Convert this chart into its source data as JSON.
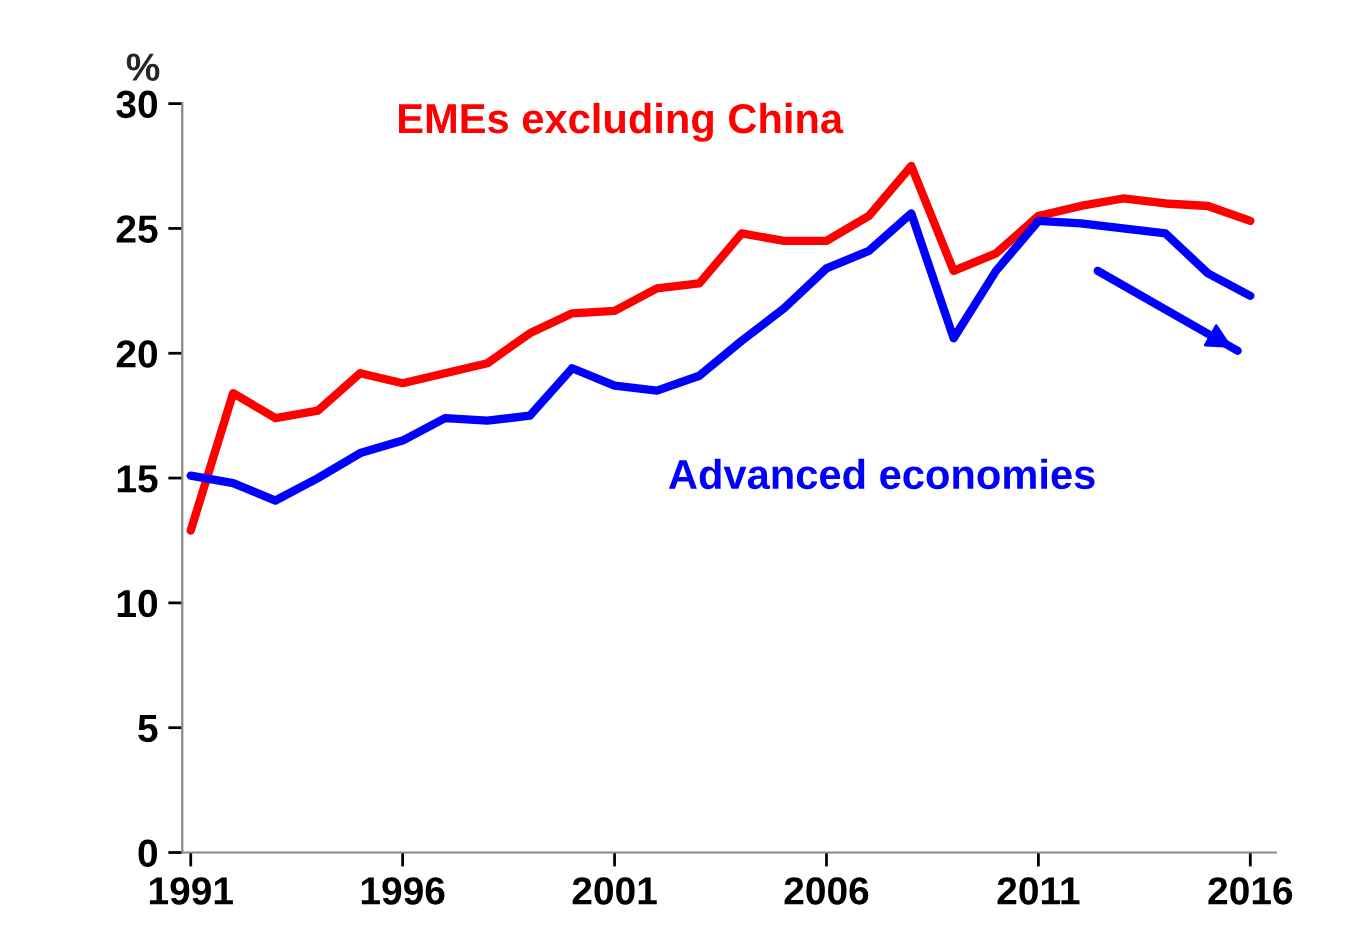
{
  "chart_data": {
    "type": "line",
    "ylabel": "%",
    "x": [
      1991,
      1992,
      1993,
      1994,
      1995,
      1996,
      1997,
      1998,
      1999,
      2000,
      2001,
      2002,
      2003,
      2004,
      2005,
      2006,
      2007,
      2008,
      2009,
      2010,
      2011,
      2012,
      2013,
      2014,
      2015,
      2016
    ],
    "series": [
      {
        "name": "EMEs excluding China",
        "color": "#ff0000",
        "values": [
          12.9,
          18.4,
          17.4,
          17.7,
          19.2,
          18.8,
          19.2,
          19.6,
          20.8,
          21.6,
          21.7,
          22.6,
          22.8,
          24.8,
          24.5,
          24.5,
          25.5,
          27.5,
          23.3,
          24.0,
          25.5,
          25.9,
          26.2,
          26.0,
          25.9,
          25.3
        ]
      },
      {
        "name": "Advanced economies",
        "color": "#0000ff",
        "values": [
          15.1,
          14.8,
          14.1,
          15.0,
          16.0,
          16.5,
          17.4,
          17.3,
          17.5,
          19.4,
          18.7,
          18.5,
          19.1,
          20.5,
          21.8,
          23.4,
          24.1,
          25.6,
          20.6,
          23.3,
          25.3,
          25.2,
          25.0,
          24.8,
          23.2,
          22.3
        ]
      },
      {
        "type": "line",
        "color": "#0000ff",
        "x": [
          2012.4,
          2015.7
        ],
        "values": [
          23.3,
          20.1
        ]
      }
    ],
    "xlim": [
      1990.8,
      2016.6
    ],
    "xticks": [
      1991,
      1996,
      2001,
      2006,
      2011,
      2016
    ],
    "ylim": [
      0,
      30
    ],
    "yticks": [
      0,
      5,
      10,
      15,
      20,
      25,
      30
    ],
    "grid": false,
    "legend": false,
    "line_style": "solid",
    "marker": "none"
  }
}
